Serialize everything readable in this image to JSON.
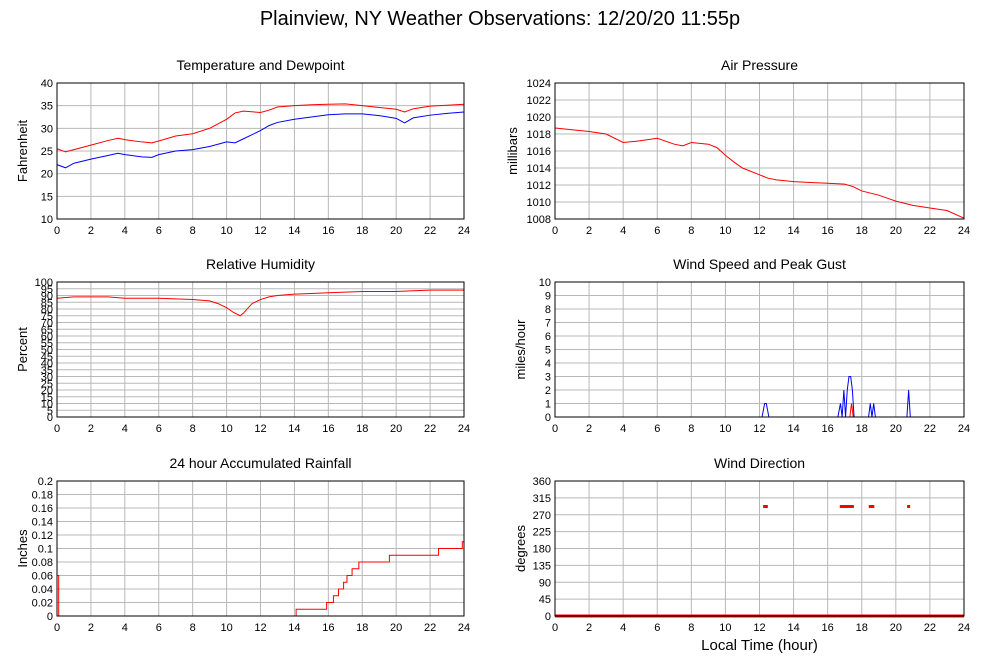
{
  "page": {
    "title": "Plainview, NY Weather Observations: 12/20/20 11:55p",
    "x_axis_label": "Local Time (hour)"
  },
  "colors": {
    "red": "#ff0000",
    "blue": "#0000ff",
    "grid": "#b8b8b8",
    "frame": "#000000"
  },
  "chart_data": [
    {
      "id": "temp",
      "type": "line",
      "title": "Temperature and Dewpoint",
      "xlabel": "",
      "ylabel": "Fahrenheit",
      "xlim": [
        0,
        24
      ],
      "ylim": [
        10,
        40
      ],
      "xticks": [
        0,
        2,
        4,
        6,
        8,
        10,
        12,
        14,
        16,
        18,
        20,
        22,
        24
      ],
      "yticks": [
        10,
        15,
        20,
        25,
        30,
        35,
        40
      ],
      "grid": true,
      "series": [
        {
          "color": "#ff0000",
          "x": [
            0,
            0.5,
            1,
            2,
            3,
            3.6,
            4,
            5,
            5.6,
            6,
            7,
            8,
            9,
            10,
            10.5,
            11,
            12,
            12.5,
            13,
            14,
            15,
            16,
            17,
            18,
            19,
            20,
            20.5,
            21,
            22,
            23,
            24
          ],
          "y": [
            25.5,
            24.8,
            25.3,
            26.3,
            27.3,
            27.8,
            27.5,
            27,
            26.8,
            27.2,
            28.3,
            28.8,
            30,
            32,
            33.4,
            33.8,
            33.5,
            34,
            34.7,
            35,
            35.2,
            35.3,
            35.4,
            35,
            34.6,
            34.2,
            33.6,
            34.3,
            34.9,
            35.1,
            35.3
          ]
        },
        {
          "color": "#0000ff",
          "x": [
            0,
            0.5,
            1,
            2,
            3,
            3.6,
            4,
            5,
            5.6,
            6,
            7,
            8,
            9,
            10,
            10.5,
            11,
            12,
            12.5,
            13,
            14,
            15,
            16,
            17,
            18,
            19,
            20,
            20.5,
            21,
            22,
            23,
            24
          ],
          "y": [
            22,
            21.3,
            22.3,
            23.2,
            24,
            24.5,
            24.2,
            23.7,
            23.6,
            24.2,
            25,
            25.3,
            26,
            27,
            26.8,
            27.7,
            29.5,
            30.6,
            31.3,
            32,
            32.5,
            33,
            33.2,
            33.2,
            32.8,
            32.2,
            31.2,
            32.3,
            32.9,
            33.3,
            33.6
          ]
        }
      ]
    },
    {
      "id": "pressure",
      "type": "line",
      "title": "Air Pressure",
      "xlabel": "",
      "ylabel": "millibars",
      "xlim": [
        0,
        24
      ],
      "ylim": [
        1008,
        1024
      ],
      "xticks": [
        0,
        2,
        4,
        6,
        8,
        10,
        12,
        14,
        16,
        18,
        20,
        22,
        24
      ],
      "yticks": [
        1008,
        1010,
        1012,
        1014,
        1016,
        1018,
        1020,
        1022,
        1024
      ],
      "grid": true,
      "series": [
        {
          "color": "#ff0000",
          "x": [
            0,
            1,
            2,
            3,
            4,
            5,
            6,
            7,
            7.5,
            8,
            9,
            9.5,
            10,
            10.5,
            11,
            12,
            12.5,
            13,
            14,
            15,
            16,
            17,
            17.5,
            18,
            19,
            20,
            21,
            22,
            23,
            24
          ],
          "y": [
            1018.7,
            1018.5,
            1018.3,
            1018,
            1017,
            1017.2,
            1017.5,
            1016.8,
            1016.6,
            1017,
            1016.8,
            1016.4,
            1015.5,
            1014.7,
            1014,
            1013.2,
            1012.8,
            1012.6,
            1012.4,
            1012.3,
            1012.2,
            1012.1,
            1011.8,
            1011.3,
            1010.8,
            1010.1,
            1009.6,
            1009.3,
            1009,
            1008.1
          ]
        }
      ]
    },
    {
      "id": "humidity",
      "type": "line",
      "title": "Relative Humidity",
      "xlabel": "",
      "ylabel": "Percent",
      "xlim": [
        0,
        24
      ],
      "ylim": [
        0,
        100
      ],
      "xticks": [
        0,
        2,
        4,
        6,
        8,
        10,
        12,
        14,
        16,
        18,
        20,
        22,
        24
      ],
      "yticks": [
        0,
        5,
        10,
        15,
        20,
        25,
        30,
        35,
        40,
        45,
        50,
        55,
        60,
        65,
        70,
        75,
        80,
        85,
        90,
        95,
        100
      ],
      "grid": true,
      "series": [
        {
          "color": "#ff0000",
          "x": [
            0,
            1,
            2,
            3,
            4,
            5,
            6,
            7,
            8,
            9,
            9.5,
            10,
            10.4,
            10.8,
            11,
            11.5,
            12,
            12.5,
            13,
            14,
            15,
            16,
            17,
            18,
            19,
            20,
            21,
            22,
            23,
            24
          ],
          "y": [
            88,
            89,
            89,
            89,
            88,
            88,
            88,
            87.5,
            87,
            86,
            84,
            81,
            77.5,
            75,
            77,
            84,
            87,
            89,
            90,
            91,
            91.5,
            92,
            92.5,
            93,
            93,
            93,
            93.5,
            94,
            94,
            94
          ]
        }
      ]
    },
    {
      "id": "wind",
      "type": "line",
      "title": "Wind Speed and Peak Gust",
      "xlabel": "",
      "ylabel": "miles/hour",
      "xlim": [
        0,
        24
      ],
      "ylim": [
        0,
        10
      ],
      "xticks": [
        0,
        2,
        4,
        6,
        8,
        10,
        12,
        14,
        16,
        18,
        20,
        22,
        24
      ],
      "yticks": [
        0,
        1,
        2,
        3,
        4,
        5,
        6,
        7,
        8,
        9,
        10
      ],
      "grid": true,
      "series": [
        {
          "color": "#0000ff",
          "x": [
            0,
            12.15,
            12.3,
            12.4,
            12.55,
            16.6,
            16.75,
            16.85,
            16.95,
            17.05,
            17.15,
            17.25,
            17.35,
            17.45,
            17.55,
            18.4,
            18.5,
            18.6,
            18.7,
            18.8,
            20.65,
            20.75,
            20.85,
            24
          ],
          "y": [
            0,
            0,
            1,
            1,
            0,
            0,
            1,
            0,
            2,
            0,
            2,
            3,
            3,
            2,
            0,
            0,
            1,
            0,
            1,
            0,
            0,
            2,
            0,
            0
          ]
        },
        {
          "color": "#ff0000",
          "x": [
            0,
            17.3,
            17.4,
            17.5,
            24
          ],
          "y": [
            0,
            0,
            1,
            0,
            0
          ]
        }
      ]
    },
    {
      "id": "rain",
      "type": "line",
      "title": "24 hour Accumulated Rainfall",
      "xlabel": "",
      "ylabel": "Inches",
      "xlim": [
        0,
        24
      ],
      "ylim": [
        0,
        0.2
      ],
      "xticks": [
        0,
        2,
        4,
        6,
        8,
        10,
        12,
        14,
        16,
        18,
        20,
        22,
        24
      ],
      "yticks": [
        0,
        0.02,
        0.04,
        0.06,
        0.08,
        0.1,
        0.12,
        0.14,
        0.16,
        0.18,
        0.2
      ],
      "grid": true,
      "series": [
        {
          "color": "#ff0000",
          "step": true,
          "x": [
            0,
            0.1,
            14.1,
            15.9,
            16.3,
            16.6,
            16.9,
            17.1,
            17.4,
            17.8,
            18.1,
            18.7,
            19.6,
            20.6,
            22.5,
            23.9,
            24
          ],
          "y": [
            0.06,
            0,
            0.01,
            0.02,
            0.03,
            0.04,
            0.05,
            0.06,
            0.07,
            0.08,
            0.08,
            0.08,
            0.09,
            0.09,
            0.1,
            0.11,
            0.11
          ]
        }
      ]
    },
    {
      "id": "direction",
      "type": "scatter",
      "title": "Wind Direction",
      "xlabel": "Local Time (hour)",
      "ylabel": "degrees",
      "xlim": [
        0,
        24
      ],
      "ylim": [
        0,
        360
      ],
      "xticks": [
        0,
        2,
        4,
        6,
        8,
        10,
        12,
        14,
        16,
        18,
        20,
        22,
        24
      ],
      "yticks": [
        0,
        45,
        90,
        135,
        180,
        225,
        270,
        315,
        360
      ],
      "grid": true,
      "baseline": {
        "value": 0,
        "color": "#ff0000"
      },
      "series": [
        {
          "color": "#ff0000",
          "x": [
            12.3,
            12.4,
            16.8,
            16.95,
            17.05,
            17.15,
            17.25,
            17.35,
            17.45,
            18.5,
            18.65,
            20.75
          ],
          "y": [
            292,
            292,
            292,
            292,
            292,
            292,
            292,
            292,
            292,
            292,
            292,
            292
          ]
        }
      ]
    }
  ]
}
